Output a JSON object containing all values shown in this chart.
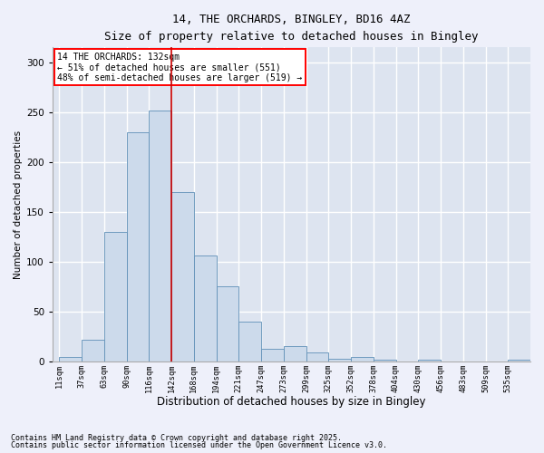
{
  "title_line1": "14, THE ORCHARDS, BINGLEY, BD16 4AZ",
  "title_line2": "Size of property relative to detached houses in Bingley",
  "xlabel": "Distribution of detached houses by size in Bingley",
  "ylabel": "Number of detached properties",
  "bar_color": "#ccdaeb",
  "bar_edge_color": "#6090b8",
  "bar_edge_width": 0.6,
  "vline_color": "#cc0000",
  "vline_x_bin": 4,
  "annotation_text": "14 THE ORCHARDS: 132sqm\n← 51% of detached houses are smaller (551)\n48% of semi-detached houses are larger (519) →",
  "footnote1": "Contains HM Land Registry data © Crown copyright and database right 2025.",
  "footnote2": "Contains public sector information licensed under the Open Government Licence v3.0.",
  "categories": [
    "11sqm",
    "37sqm",
    "63sqm",
    "90sqm",
    "116sqm",
    "142sqm",
    "168sqm",
    "194sqm",
    "221sqm",
    "247sqm",
    "273sqm",
    "299sqm",
    "325sqm",
    "352sqm",
    "378sqm",
    "404sqm",
    "430sqm",
    "456sqm",
    "483sqm",
    "509sqm",
    "535sqm"
  ],
  "bin_starts": [
    11,
    37,
    63,
    90,
    116,
    142,
    168,
    194,
    221,
    247,
    273,
    299,
    325,
    352,
    378,
    404,
    430,
    456,
    483,
    509,
    535
  ],
  "bin_width": 26,
  "values": [
    4,
    21,
    130,
    230,
    252,
    170,
    106,
    75,
    40,
    12,
    15,
    9,
    2,
    4,
    1,
    0,
    1,
    0,
    0,
    0,
    1
  ],
  "ylim": [
    0,
    315
  ],
  "yticks": [
    0,
    50,
    100,
    150,
    200,
    250,
    300
  ],
  "background_color": "#eef0fa",
  "grid_color": "#ffffff",
  "plot_bg_color": "#dde4f0"
}
